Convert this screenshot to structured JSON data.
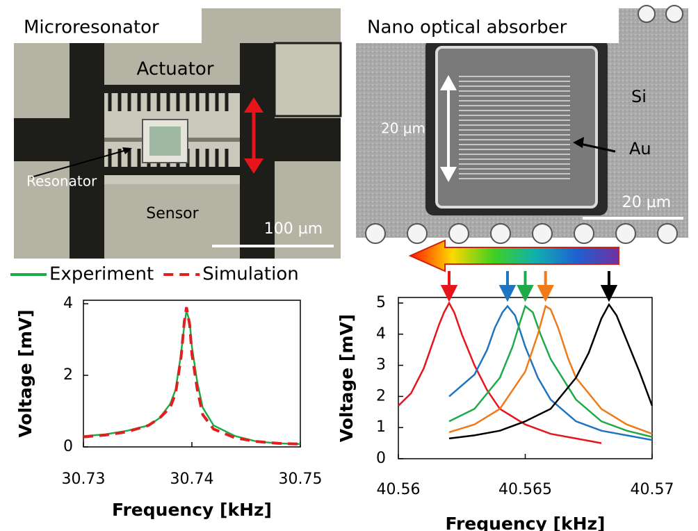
{
  "images": [
    {
      "title": "Microresonator",
      "labels": [
        "Actuator",
        "Resonator",
        "Sensor"
      ],
      "scale_bar": "100 µm"
    },
    {
      "title": "Nano optical absorber",
      "labels": [
        "20 µm",
        "Si",
        "Au"
      ],
      "scale_bar": "20 µm"
    }
  ],
  "chart_data": [
    {
      "type": "line",
      "xlabel": "Frequency [kHz]",
      "ylabel": "Voltage [mV]",
      "xlim": [
        30.73,
        30.75
      ],
      "xticks": [
        30.73,
        30.74,
        30.75
      ],
      "ylim": [
        0,
        4
      ],
      "yticks": [
        0,
        2,
        4
      ],
      "x": [
        30.73,
        30.732,
        30.734,
        30.736,
        30.737,
        30.738,
        30.7385,
        30.739,
        30.7393,
        30.7395,
        30.7398,
        30.74,
        30.7405,
        30.741,
        30.742,
        30.744,
        30.746,
        30.748,
        30.75
      ],
      "series": [
        {
          "name": "Experiment",
          "color": "#1faa4a",
          "dash": false,
          "values": [
            0.3,
            0.35,
            0.45,
            0.6,
            0.8,
            1.2,
            1.6,
            2.6,
            3.4,
            3.8,
            3.5,
            2.8,
            1.8,
            1.1,
            0.6,
            0.3,
            0.15,
            0.1,
            0.08
          ]
        },
        {
          "name": "Simulation",
          "color": "#e02020",
          "dash": true,
          "values": [
            0.28,
            0.33,
            0.42,
            0.6,
            0.8,
            1.1,
            1.5,
            2.5,
            3.5,
            3.9,
            3.4,
            2.6,
            1.6,
            0.9,
            0.5,
            0.25,
            0.15,
            0.1,
            0.08
          ]
        }
      ]
    },
    {
      "type": "line",
      "xlabel": "Frequency [kHz]",
      "ylabel": "Voltage [mV]",
      "xlim": [
        40.56,
        40.57
      ],
      "xticks": [
        40.56,
        40.565,
        40.57
      ],
      "ylim": [
        0,
        5
      ],
      "yticks": [
        0,
        1,
        2,
        3,
        4,
        5
      ],
      "series": [
        {
          "color": "#e8141c",
          "x": [
            40.56,
            40.5605,
            40.561,
            40.5613,
            40.5616,
            40.5618,
            40.562,
            40.5622,
            40.5625,
            40.563,
            40.5635,
            40.564,
            40.565,
            40.566,
            40.567,
            40.568
          ],
          "values": [
            1.7,
            2.1,
            2.9,
            3.6,
            4.3,
            4.7,
            5.0,
            4.7,
            4.0,
            3.0,
            2.2,
            1.6,
            1.1,
            0.8,
            0.65,
            0.5
          ]
        },
        {
          "color": "#1f74c0",
          "x": [
            40.562,
            40.563,
            40.5635,
            40.5638,
            40.5641,
            40.5643,
            40.5646,
            40.565,
            40.5655,
            40.566,
            40.567,
            40.568,
            40.569,
            40.57
          ],
          "values": [
            2.0,
            2.7,
            3.5,
            4.2,
            4.7,
            4.9,
            4.6,
            3.6,
            2.6,
            1.9,
            1.2,
            0.9,
            0.75,
            0.6
          ]
        },
        {
          "color": "#1faa4a",
          "x": [
            40.562,
            40.563,
            40.564,
            40.5645,
            40.5648,
            40.565,
            40.5653,
            40.5656,
            40.566,
            40.567,
            40.568,
            40.569,
            40.57
          ],
          "values": [
            1.2,
            1.6,
            2.6,
            3.6,
            4.4,
            4.9,
            4.7,
            4.0,
            3.2,
            1.9,
            1.2,
            0.9,
            0.7
          ]
        },
        {
          "color": "#f07a18",
          "x": [
            40.562,
            40.563,
            40.564,
            40.565,
            40.5655,
            40.5658,
            40.566,
            40.5663,
            40.5667,
            40.567,
            40.568,
            40.569,
            40.57
          ],
          "values": [
            0.85,
            1.1,
            1.6,
            2.8,
            4.0,
            4.9,
            4.8,
            4.2,
            3.2,
            2.6,
            1.6,
            1.1,
            0.8
          ]
        },
        {
          "color": "#000000",
          "x": [
            40.562,
            40.563,
            40.564,
            40.565,
            40.566,
            40.567,
            40.5675,
            40.568,
            40.5683,
            40.5686,
            40.569,
            40.5695,
            40.57
          ],
          "values": [
            0.65,
            0.75,
            0.9,
            1.2,
            1.6,
            2.6,
            3.4,
            4.5,
            4.95,
            4.6,
            3.8,
            2.8,
            1.7
          ]
        }
      ]
    }
  ]
}
